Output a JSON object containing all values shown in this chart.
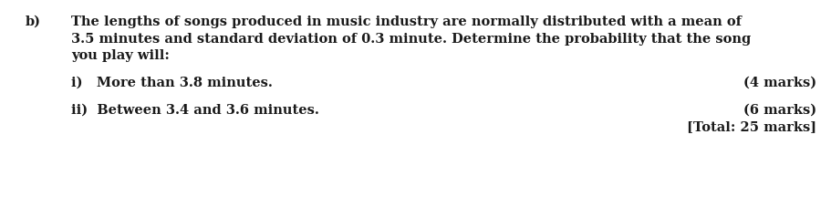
{
  "background_color": "#ffffff",
  "label_b": "b)",
  "para_text_line1": "The lengths of songs produced in music industry are normally distributed with a mean of",
  "para_text_line2": "3.5 minutes and standard deviation of 0.3 minute. Determine the probability that the song",
  "para_text_line3": "you play will:",
  "item_i_text": "i)   More than 3.8 minutes.",
  "item_i_marks": "(4 marks)",
  "item_ii_text": "ii)  Between 3.4 and 3.6 minutes.",
  "item_ii_marks": "(6 marks)",
  "total_marks": "[Total: 25 marks]",
  "font_size": 10.5,
  "text_color": "#1a1a1a",
  "font_family": "DejaVu Serif",
  "fig_width": 9.11,
  "fig_height": 2.27
}
